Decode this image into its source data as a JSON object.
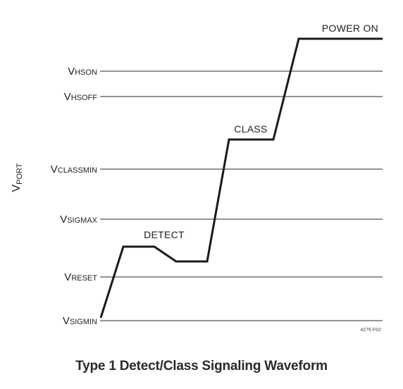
{
  "diagram": {
    "y_axis": {
      "main": "V",
      "sub": "PORT"
    },
    "levels": [
      {
        "id": "hson",
        "main": "V",
        "sub": "HSON"
      },
      {
        "id": "hsoff",
        "main": "V",
        "sub": "HSOFF"
      },
      {
        "id": "classmin",
        "main": "V",
        "sub": "CLASSMIN"
      },
      {
        "id": "sigmax",
        "main": "V",
        "sub": "SIGMAX"
      },
      {
        "id": "reset",
        "main": "V",
        "sub": "RESET"
      },
      {
        "id": "sigmin",
        "main": "V",
        "sub": "SIGMIN"
      }
    ],
    "regions": {
      "power_on": "POWER ON",
      "class": "CLASS",
      "detect": "DETECT"
    },
    "figure_id": "4276 F02"
  },
  "caption": "Type 1 Detect/Class Signaling Waveform",
  "colors": {
    "line": "#1a1a1a",
    "threshold": "#555555"
  }
}
